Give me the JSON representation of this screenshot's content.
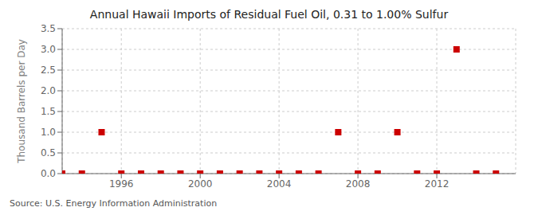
{
  "chart_data": {
    "type": "scatter",
    "title": "Annual Hawaii Imports of Residual Fuel Oil, 0.31 to 1.00% Sulfur",
    "y_label": "Thousand Barrels per Day",
    "source": "Source: U.S. Energy Information Administration",
    "x": [
      1993,
      1994,
      1995,
      1996,
      1997,
      1998,
      1999,
      2000,
      2001,
      2002,
      2003,
      2004,
      2005,
      2006,
      2007,
      2008,
      2009,
      2010,
      2011,
      2012,
      2013,
      2014,
      2015
    ],
    "values": [
      0.0,
      0.0,
      1.0,
      0.0,
      0.0,
      0.0,
      0.0,
      0.0,
      0.0,
      0.0,
      0.0,
      0.0,
      0.0,
      0.0,
      1.0,
      0.0,
      0.0,
      1.0,
      0.0,
      0.0,
      3.0,
      0.0,
      0.0
    ],
    "color": "#cc0000",
    "marker": "square",
    "xlim": [
      1993.0,
      2016.0
    ],
    "xticks": [
      1996,
      2000,
      2004,
      2008,
      2012
    ],
    "ylim": [
      0.0,
      3.5
    ],
    "yticks": [
      {
        "value": 0.0,
        "label": "0.0"
      },
      0.5,
      {
        "value": 1.0,
        "label": "1.0"
      },
      1.5,
      {
        "value": 2.0,
        "label": "2.0"
      },
      2.5,
      {
        "value": 3.0,
        "label": "3.0"
      },
      3.5
    ],
    "grid": true
  }
}
